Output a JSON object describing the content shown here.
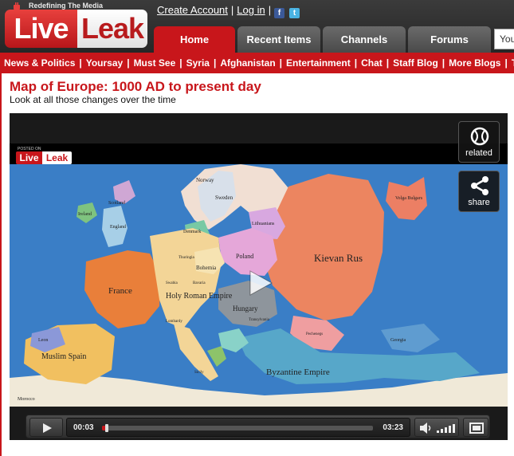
{
  "logo": {
    "tagline": "Redefining The Media",
    "live": "Live",
    "leak": "Leak"
  },
  "account": {
    "create": "Create Account",
    "login": "Log in",
    "sep": "|"
  },
  "tabs": [
    {
      "label": "Home",
      "active": true
    },
    {
      "label": "Recent Items",
      "active": false
    },
    {
      "label": "Channels",
      "active": false
    },
    {
      "label": "Forums",
      "active": false
    }
  ],
  "search": {
    "placeholder": "You"
  },
  "nav": {
    "items": [
      "News & Politics",
      "Yoursay",
      "Must See",
      "Syria",
      "Afghanistan",
      "Entertainment",
      "Chat",
      "Staff Blog",
      "More Blogs",
      "T"
    ],
    "sep": "|"
  },
  "video": {
    "title": "Map of Europe: 1000 AD to present day",
    "description": "Look at all those changes over the time",
    "watermark_small": "POSTED ON",
    "watermark_live": "Live",
    "watermark_leak": "Leak",
    "related_label": "related",
    "share_label": "share",
    "current_time": "00:03",
    "duration": "03:23",
    "progress": 0.015
  },
  "map_labels": {
    "norway": "Norway",
    "sweden": "Sweden",
    "scotland": "Scotland",
    "ireland": "Ireland",
    "england": "England",
    "denmark": "Denmark",
    "france": "France",
    "hre": "Holy Roman Empire",
    "bohemia": "Bohemia",
    "poland": "Poland",
    "lithuanians": "Lithuanians",
    "kievan": "Kievan Rus",
    "volga": "Volga Bulgars",
    "hungary": "Hungary",
    "byzantine": "Byzantine Empire",
    "muslim_spain": "Muslim Spain",
    "leon": "Leon",
    "morocco": "Morocco",
    "pechenegs": "Pechenegs",
    "georgia": "Georgia",
    "thuringia": "Thuringia",
    "swabia": "Swabia",
    "bavaria": "Bavaria",
    "transylvania": "Transylvania",
    "sicily": "Sicily",
    "lombardy": "Lombardy"
  },
  "colors": {
    "brand_red": "#c8161b",
    "header_dark": "#2b2b2b",
    "sea": "#3a7ec6",
    "kievan": "#ec8560",
    "france": "#e97f3a",
    "hre": "#f3d597",
    "hungary": "#8e959c",
    "byzantine": "#57a7c9"
  }
}
